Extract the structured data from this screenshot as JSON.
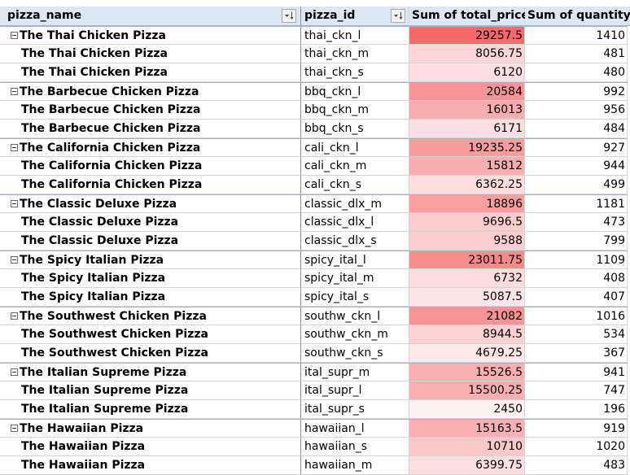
{
  "headers": {
    "pizza_name": "pizza_name",
    "pizza_id": "pizza_id",
    "total_price": "Sum of total_price",
    "quantity": "Sum of quantity"
  },
  "colors": {
    "scale_min": "#fdf2f3",
    "scale_max": "#f8696b"
  },
  "price_scale": {
    "min": 2450,
    "max": 29257.5
  },
  "rows": [
    {
      "name": "The Thai Chicken Pizza",
      "id": "thai_ckn_l",
      "price": "29257.5",
      "qty": "1410",
      "group_start": true
    },
    {
      "name": "The Thai Chicken Pizza",
      "id": "thai_ckn_m",
      "price": "8056.75",
      "qty": "481",
      "group_start": false
    },
    {
      "name": "The Thai Chicken Pizza",
      "id": "thai_ckn_s",
      "price": "6120",
      "qty": "480",
      "group_start": false
    },
    {
      "name": "The Barbecue Chicken Pizza",
      "id": "bbq_ckn_l",
      "price": "20584",
      "qty": "992",
      "group_start": true
    },
    {
      "name": "The Barbecue Chicken Pizza",
      "id": "bbq_ckn_m",
      "price": "16013",
      "qty": "956",
      "group_start": false
    },
    {
      "name": "The Barbecue Chicken Pizza",
      "id": "bbq_ckn_s",
      "price": "6171",
      "qty": "484",
      "group_start": false
    },
    {
      "name": "The California Chicken Pizza",
      "id": "cali_ckn_l",
      "price": "19235.25",
      "qty": "927",
      "group_start": true
    },
    {
      "name": "The California Chicken Pizza",
      "id": "cali_ckn_m",
      "price": "15812",
      "qty": "944",
      "group_start": false
    },
    {
      "name": "The California Chicken Pizza",
      "id": "cali_ckn_s",
      "price": "6362.25",
      "qty": "499",
      "group_start": false
    },
    {
      "name": "The Classic Deluxe Pizza",
      "id": "classic_dlx_m",
      "price": "18896",
      "qty": "1181",
      "group_start": true
    },
    {
      "name": "The Classic Deluxe Pizza",
      "id": "classic_dlx_l",
      "price": "9696.5",
      "qty": "473",
      "group_start": false
    },
    {
      "name": "The Classic Deluxe Pizza",
      "id": "classic_dlx_s",
      "price": "9588",
      "qty": "799",
      "group_start": false
    },
    {
      "name": "The Spicy Italian Pizza",
      "id": "spicy_ital_l",
      "price": "23011.75",
      "qty": "1109",
      "group_start": true
    },
    {
      "name": "The Spicy Italian Pizza",
      "id": "spicy_ital_m",
      "price": "6732",
      "qty": "408",
      "group_start": false
    },
    {
      "name": "The Spicy Italian Pizza",
      "id": "spicy_ital_s",
      "price": "5087.5",
      "qty": "407",
      "group_start": false
    },
    {
      "name": "The Southwest Chicken Pizza",
      "id": "southw_ckn_l",
      "price": "21082",
      "qty": "1016",
      "group_start": true
    },
    {
      "name": "The Southwest Chicken Pizza",
      "id": "southw_ckn_m",
      "price": "8944.5",
      "qty": "534",
      "group_start": false
    },
    {
      "name": "The Southwest Chicken Pizza",
      "id": "southw_ckn_s",
      "price": "4679.25",
      "qty": "367",
      "group_start": false
    },
    {
      "name": "The Italian Supreme Pizza",
      "id": "ital_supr_m",
      "price": "15526.5",
      "qty": "941",
      "group_start": true
    },
    {
      "name": "The Italian Supreme Pizza",
      "id": "ital_supr_l",
      "price": "15500.25",
      "qty": "747",
      "group_start": false
    },
    {
      "name": "The Italian Supreme Pizza",
      "id": "ital_supr_s",
      "price": "2450",
      "qty": "196",
      "group_start": false
    },
    {
      "name": "The Hawaiian Pizza",
      "id": "hawaiian_l",
      "price": "15163.5",
      "qty": "919",
      "group_start": true
    },
    {
      "name": "The Hawaiian Pizza",
      "id": "hawaiian_s",
      "price": "10710",
      "qty": "1020",
      "group_start": false
    },
    {
      "name": "The Hawaiian Pizza",
      "id": "hawaiian_m",
      "price": "6399.75",
      "qty": "483",
      "group_start": false
    }
  ]
}
